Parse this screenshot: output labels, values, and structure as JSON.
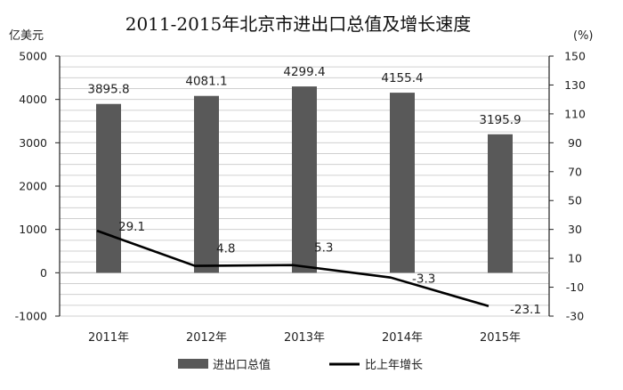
{
  "chart_data": {
    "type": "bar",
    "title": "2011-2015年北京市进出口总值及增长速度",
    "left_axis_unit": "亿美元",
    "right_axis_unit": "(%)",
    "categories": [
      "2011年",
      "2012年",
      "2013年",
      "2014年",
      "2015年"
    ],
    "ylim": [
      -1000,
      5000
    ],
    "y_ticks": [
      "-1000",
      "0",
      "1000",
      "2000",
      "3000",
      "4000",
      "5000"
    ],
    "y2lim": [
      -30,
      150
    ],
    "y2_ticks": [
      "-30",
      "-10",
      "10",
      "30",
      "50",
      "70",
      "90",
      "110",
      "130",
      "150"
    ],
    "grid": true,
    "legend_position": "bottom",
    "series": [
      {
        "name": "进出口总值",
        "type": "bar",
        "axis": "left",
        "color": "#595959",
        "values": [
          3895.8,
          4081.1,
          4299.4,
          4155.4,
          3195.9
        ],
        "labels": [
          "3895.8",
          "4081.1",
          "4299.4",
          "4155.4",
          "3195.9"
        ]
      },
      {
        "name": "比上年增长",
        "type": "line",
        "axis": "right",
        "color": "#000000",
        "values": [
          29.1,
          4.8,
          5.3,
          -3.3,
          -23.1
        ],
        "labels": [
          "29.1",
          "4.8",
          "5.3",
          "-3.3",
          "-23.1"
        ]
      }
    ]
  }
}
